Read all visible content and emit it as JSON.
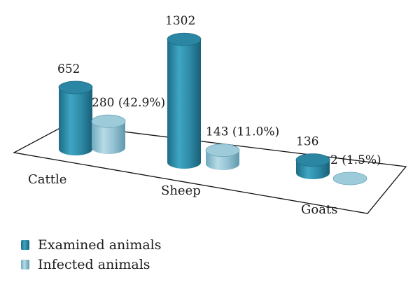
{
  "chart_data": {
    "type": "bar",
    "categories": [
      "Cattle",
      "Sheep",
      "Goats"
    ],
    "series": [
      {
        "name": "Examined animals",
        "values": [
          652,
          1302,
          136
        ]
      },
      {
        "name": "Infected animals",
        "values": [
          280,
          143,
          2
        ]
      }
    ],
    "data_labels": [
      [
        "652",
        "1302",
        "136"
      ],
      [
        "280 (42.9%)",
        "143 (11.0%)",
        "2 (1.5%)"
      ]
    ],
    "legend_position": "bottom-left",
    "grid": false,
    "colors": {
      "examined": "#2e8ca8",
      "infected": "#93c2d2"
    }
  },
  "legend": {
    "items": [
      {
        "label": "Examined animals",
        "color": "#2e8ca8"
      },
      {
        "label": "Infected animals",
        "color": "#93c2d2"
      }
    ]
  }
}
